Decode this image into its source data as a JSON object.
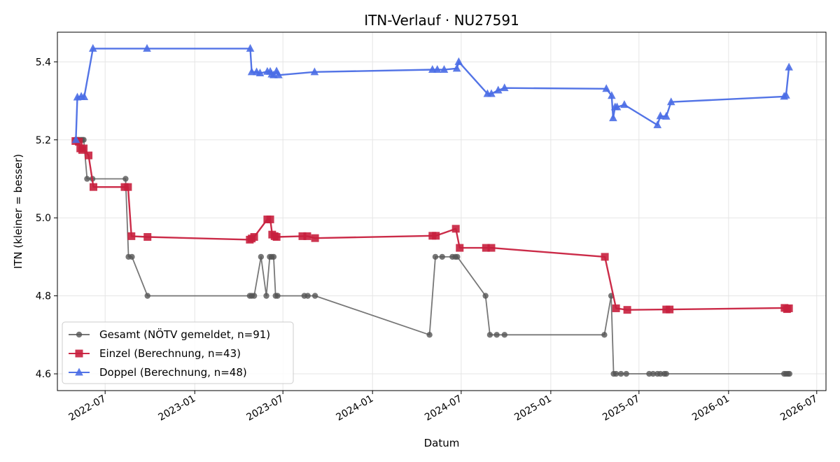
{
  "chart_data": {
    "type": "line",
    "title": "ITN-Verlauf · NU27591",
    "xlabel": "Datum",
    "ylabel": "ITN  (kleiner = besser)",
    "x_ticks": [
      "2022-07",
      "2023-01",
      "2023-07",
      "2024-01",
      "2024-07",
      "2025-01",
      "2025-07",
      "2026-01",
      "2026-07"
    ],
    "y_ticks": [
      4.6,
      4.8,
      5.0,
      5.2,
      5.4
    ],
    "xlim": [
      "2022-03-25",
      "2026-07-20"
    ],
    "ylim": [
      4.557,
      5.476
    ],
    "grid": true,
    "legend_position": "lower-left",
    "series": [
      {
        "name": "Gesamt (NÖTV gemeldet, n=91)",
        "color": "#555555",
        "marker": "circle",
        "points": [
          [
            "2022-05-01",
            5.2
          ],
          [
            "2022-05-05",
            5.2
          ],
          [
            "2022-05-08",
            5.2
          ],
          [
            "2022-05-12",
            5.2
          ],
          [
            "2022-05-15",
            5.2
          ],
          [
            "2022-05-18",
            5.2
          ],
          [
            "2022-05-25",
            5.1
          ],
          [
            "2022-06-05",
            5.1
          ],
          [
            "2022-08-12",
            5.1
          ],
          [
            "2022-08-18",
            4.9
          ],
          [
            "2022-08-25",
            4.9
          ],
          [
            "2022-09-26",
            4.8
          ],
          [
            "2023-04-24",
            4.8
          ],
          [
            "2023-04-28",
            4.8
          ],
          [
            "2023-05-03",
            4.8
          ],
          [
            "2023-05-17",
            4.9
          ],
          [
            "2023-05-28",
            4.8
          ],
          [
            "2023-06-04",
            4.9
          ],
          [
            "2023-06-08",
            4.9
          ],
          [
            "2023-06-12",
            4.9
          ],
          [
            "2023-06-16",
            4.8
          ],
          [
            "2023-06-20",
            4.8
          ],
          [
            "2023-08-14",
            4.8
          ],
          [
            "2023-08-21",
            4.8
          ],
          [
            "2023-09-05",
            4.8
          ],
          [
            "2024-04-27",
            4.7
          ],
          [
            "2024-05-09",
            4.9
          ],
          [
            "2024-05-23",
            4.9
          ],
          [
            "2024-06-13",
            4.9
          ],
          [
            "2024-06-19",
            4.9
          ],
          [
            "2024-06-23",
            4.9
          ],
          [
            "2024-08-20",
            4.8
          ],
          [
            "2024-08-29",
            4.7
          ],
          [
            "2024-09-12",
            4.7
          ],
          [
            "2024-09-28",
            4.7
          ],
          [
            "2025-04-21",
            4.7
          ],
          [
            "2025-05-05",
            4.8
          ],
          [
            "2025-05-10",
            4.6
          ],
          [
            "2025-05-15",
            4.6
          ],
          [
            "2025-05-25",
            4.6
          ],
          [
            "2025-06-05",
            4.6
          ],
          [
            "2025-07-22",
            4.6
          ],
          [
            "2025-07-30",
            4.6
          ],
          [
            "2025-08-08",
            4.6
          ],
          [
            "2025-08-14",
            4.6
          ],
          [
            "2025-08-22",
            4.6
          ],
          [
            "2025-08-26",
            4.6
          ],
          [
            "2026-04-25",
            4.6
          ],
          [
            "2026-04-29",
            4.6
          ],
          [
            "2026-05-03",
            4.6
          ],
          [
            "2026-05-06",
            4.6
          ]
        ]
      },
      {
        "name": "Einzel (Berechnung, n=43)",
        "color": "#c8203e",
        "marker": "square",
        "points": [
          [
            "2022-05-01",
            5.197
          ],
          [
            "2022-05-08",
            5.195
          ],
          [
            "2022-05-11",
            5.178
          ],
          [
            "2022-05-15",
            5.174
          ],
          [
            "2022-05-18",
            5.178
          ],
          [
            "2022-05-28",
            5.16
          ],
          [
            "2022-06-07",
            5.079
          ],
          [
            "2022-08-10",
            5.079
          ],
          [
            "2022-08-17",
            5.079
          ],
          [
            "2022-08-24",
            4.953
          ],
          [
            "2022-09-26",
            4.951
          ],
          [
            "2023-04-24",
            4.944
          ],
          [
            "2023-04-28",
            4.947
          ],
          [
            "2023-05-03",
            4.951
          ],
          [
            "2023-05-30",
            4.996
          ],
          [
            "2023-06-05",
            4.996
          ],
          [
            "2023-06-09",
            4.957
          ],
          [
            "2023-06-14",
            4.953
          ],
          [
            "2023-06-18",
            4.951
          ],
          [
            "2023-08-10",
            4.953
          ],
          [
            "2023-08-20",
            4.953
          ],
          [
            "2023-09-05",
            4.948
          ],
          [
            "2024-05-03",
            4.954
          ],
          [
            "2024-05-10",
            4.954
          ],
          [
            "2024-06-20",
            4.972
          ],
          [
            "2024-06-28",
            4.923
          ],
          [
            "2024-08-21",
            4.923
          ],
          [
            "2024-09-01",
            4.923
          ],
          [
            "2025-04-22",
            4.9
          ],
          [
            "2025-05-15",
            4.768
          ],
          [
            "2025-06-07",
            4.764
          ],
          [
            "2025-08-26",
            4.765
          ],
          [
            "2025-09-02",
            4.765
          ],
          [
            "2026-04-26",
            4.769
          ],
          [
            "2026-05-01",
            4.766
          ],
          [
            "2026-05-05",
            4.768
          ]
        ]
      },
      {
        "name": "Doppel (Berechnung, n=48)",
        "color": "#4a6de5",
        "marker": "triangle",
        "points": [
          [
            "2022-05-02",
            5.2
          ],
          [
            "2022-05-05",
            5.309
          ],
          [
            "2022-05-13",
            5.311
          ],
          [
            "2022-05-19",
            5.31
          ],
          [
            "2022-06-06",
            5.434
          ],
          [
            "2022-09-25",
            5.434
          ],
          [
            "2023-04-25",
            5.434
          ],
          [
            "2023-04-28",
            5.374
          ],
          [
            "2023-05-08",
            5.374
          ],
          [
            "2023-05-15",
            5.371
          ],
          [
            "2023-05-30",
            5.375
          ],
          [
            "2023-06-05",
            5.375
          ],
          [
            "2023-06-08",
            5.368
          ],
          [
            "2023-06-12",
            5.366
          ],
          [
            "2023-06-18",
            5.376
          ],
          [
            "2023-06-22",
            5.366
          ],
          [
            "2023-09-04",
            5.374
          ],
          [
            "2024-05-03",
            5.38
          ],
          [
            "2024-05-13",
            5.38
          ],
          [
            "2024-05-27",
            5.38
          ],
          [
            "2024-06-22",
            5.383
          ],
          [
            "2024-06-26",
            5.4
          ],
          [
            "2024-08-24",
            5.318
          ],
          [
            "2024-09-01",
            5.318
          ],
          [
            "2024-09-15",
            5.327
          ],
          [
            "2024-09-28",
            5.333
          ],
          [
            "2025-04-25",
            5.331
          ],
          [
            "2025-05-06",
            5.313
          ],
          [
            "2025-05-09",
            5.256
          ],
          [
            "2025-05-13",
            5.284
          ],
          [
            "2025-05-17",
            5.284
          ],
          [
            "2025-06-01",
            5.29
          ],
          [
            "2025-08-08",
            5.238
          ],
          [
            "2025-08-14",
            5.261
          ],
          [
            "2025-08-26",
            5.26
          ],
          [
            "2025-09-05",
            5.297
          ],
          [
            "2026-04-25",
            5.311
          ],
          [
            "2026-04-29",
            5.314
          ],
          [
            "2026-05-05",
            5.386
          ]
        ]
      }
    ]
  }
}
